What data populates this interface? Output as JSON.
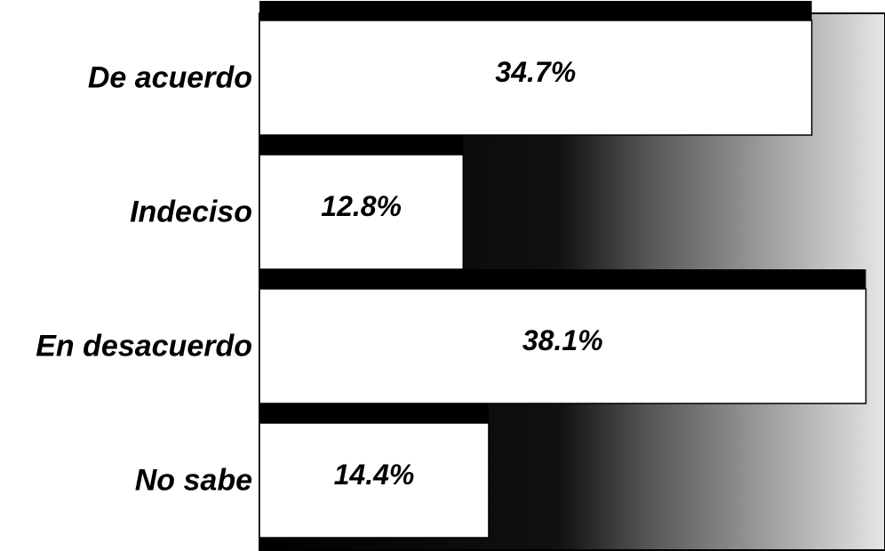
{
  "chart_data": {
    "type": "hbar",
    "categories": [
      "De acuerdo",
      "Indeciso",
      "En desacuerdo",
      "No sabe"
    ],
    "values": [
      34.7,
      12.8,
      38.1,
      14.4
    ],
    "value_labels": [
      "34.7%",
      "12.8%",
      "38.1%",
      "14.4%"
    ],
    "color": "#ffffff",
    "xlim": [
      0,
      39.3
    ]
  }
}
